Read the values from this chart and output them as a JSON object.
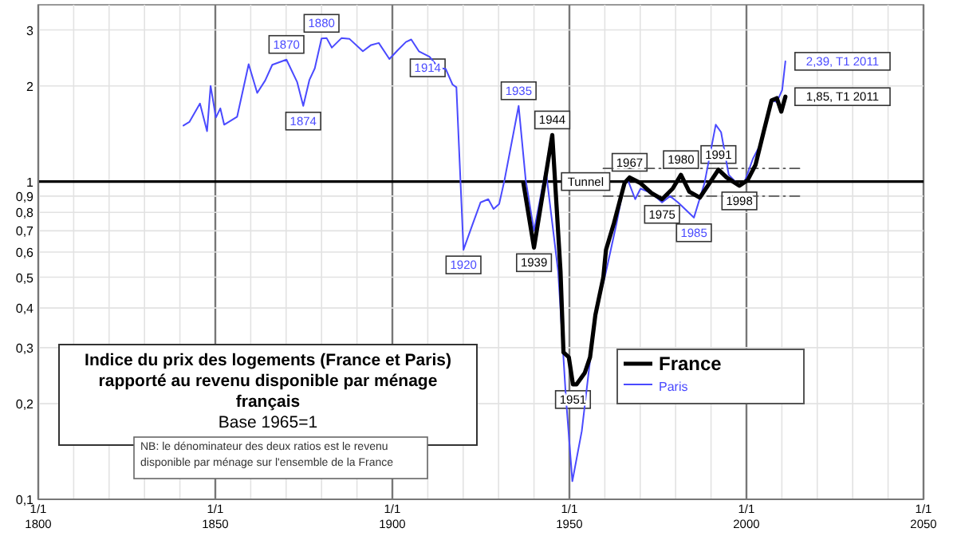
{
  "chart_data": {
    "type": "line",
    "title": "Indice du prix des logements (France et Paris) rapporté au revenu disponible par ménage français",
    "subtitle": "Base 1965=1",
    "log": "y",
    "grid": true,
    "legend": "bottom",
    "xlim": [
      "1800-01-01",
      "2050-01-01"
    ],
    "ylim": [
      0.1,
      3.6
    ],
    "xticks": [
      {
        "value": "1800-01-01",
        "label": "1/1\n1800"
      },
      {
        "value": "1810-01-01",
        "label": null
      },
      {
        "value": "1820-01-01",
        "label": null
      },
      {
        "value": "1830-01-01",
        "label": null
      },
      {
        "value": "1840-01-01",
        "label": null
      },
      {
        "value": "1850-01-01",
        "label": "1/1\n1850"
      },
      {
        "value": "1860-01-01",
        "label": null
      },
      {
        "value": "1870-01-01",
        "label": null
      },
      {
        "value": "1880-01-01",
        "label": null
      },
      {
        "value": "1890-01-01",
        "label": null
      },
      {
        "value": "1900-01-01",
        "label": "1/1\n1900"
      },
      {
        "value": "1910-01-01",
        "label": null
      },
      {
        "value": "1920-01-01",
        "label": null
      },
      {
        "value": "1930-01-01",
        "label": null
      },
      {
        "value": "1940-01-01",
        "label": null
      },
      {
        "value": "1950-01-01",
        "label": "1/1\n1950"
      },
      {
        "value": "1960-01-01",
        "label": null
      },
      {
        "value": "1970-01-01",
        "label": null
      },
      {
        "value": "1980-01-01",
        "label": null
      },
      {
        "value": "1990-01-01",
        "label": null
      },
      {
        "value": "2000-01-01",
        "label": "1/1\n2000"
      },
      {
        "value": "2010-01-01",
        "label": null
      },
      {
        "value": "2020-01-01",
        "label": null
      },
      {
        "value": "2030-01-01",
        "label": null
      },
      {
        "value": "2040-01-01",
        "label": null
      },
      {
        "value": "2050-01-01",
        "label": "1/1\n2050"
      }
    ],
    "yticks": [
      {
        "value": 0.1,
        "label": "0,1"
      },
      {
        "value": 0.2,
        "label": "0,2"
      },
      {
        "value": 0.3,
        "label": "0,3"
      },
      {
        "value": 0.4,
        "label": "0,4"
      },
      {
        "value": 0.5,
        "label": "0,5"
      },
      {
        "value": 0.6,
        "label": "0,6"
      },
      {
        "value": 0.7,
        "label": "0,7"
      },
      {
        "value": 0.8,
        "label": "0,8"
      },
      {
        "value": 0.9,
        "label": "0,9"
      },
      1,
      2,
      3
    ],
    "ref_lines": [
      {
        "axis": "y",
        "value": 1,
        "color": "#000000"
      }
    ],
    "series": [
      {
        "name": "France",
        "color": "#000000",
        "x": [
          "1937-01",
          "1940-01",
          "1945-03",
          "1947-07",
          "1948-05",
          "1949-11",
          "1951-01",
          "1952-01",
          "1954-05",
          "1955-11",
          "1957-05",
          "1959-08",
          "1960-05",
          "1962-08",
          "1965-08",
          "1967-01",
          "1970-01",
          "1973-03",
          "1976-03",
          "1979-03",
          "1981-07",
          "1983-11",
          "1986-11",
          "1989-02",
          "1992-02",
          "1994-06",
          "1998-01",
          "2000-05",
          "2002-08",
          "2004-11",
          "2007-02",
          "2008-08",
          "2009-11",
          "2011-01"
        ],
        "values": [
          0.99,
          0.62,
          1.4,
          0.52,
          0.29,
          0.28,
          0.23,
          0.23,
          0.25,
          0.28,
          0.38,
          0.5,
          0.61,
          0.74,
          0.99,
          1.03,
          0.99,
          0.92,
          0.88,
          0.95,
          1.05,
          0.93,
          0.89,
          0.97,
          1.09,
          1.03,
          0.97,
          1.01,
          1.13,
          1.43,
          1.8,
          1.83,
          1.66,
          1.85
        ]
      },
      {
        "name": "Paris",
        "color": "#4a4aff",
        "x": [
          "1841-01",
          "1842-09",
          "1845-09",
          "1847-09",
          "1848-09",
          "1850-03",
          "1851-06",
          "1852-07",
          "1856-03",
          "1859-06",
          "1861-11",
          "1864-02",
          "1866-02",
          "1870-02",
          "1873-02",
          "1874-11",
          "1876-08",
          "1878-02",
          "1880-01",
          "1881-06",
          "1882-12",
          "1885-09",
          "1887-12",
          "1891-09",
          "1894-01",
          "1896-03",
          "1899-03",
          "1901-07",
          "1903-11",
          "1905-05",
          "1907-07",
          "1910-07",
          "1913-02",
          "1915-02",
          "1917-01",
          "1918-02",
          "1920-02",
          "1922-08",
          "1924-12",
          "1927-02",
          "1928-08",
          "1930-03",
          "1931-09",
          "1935-09",
          "1937-09",
          "1940-01",
          "1943-05",
          "1946-11",
          "1949-01",
          "1950-11",
          "1953-07",
          "1957-05",
          "1960-05",
          "1963-05",
          "1965-08",
          "1966-09",
          "1968-08",
          "1970-02",
          "1973-03",
          "1976-03",
          "1978-06",
          "1980-09",
          "1985-03",
          "1988-03",
          "1991-05",
          "1992-11",
          "1995-01",
          "1998-01",
          "1999-07",
          "2001-11",
          "2004-02",
          "2007-02",
          "2008-08",
          "2010-02",
          "2011-01"
        ],
        "values": [
          1.5,
          1.54,
          1.76,
          1.44,
          2.0,
          1.59,
          1.7,
          1.51,
          1.6,
          2.34,
          1.9,
          2.08,
          2.33,
          2.42,
          2.06,
          1.73,
          2.09,
          2.27,
          2.82,
          2.83,
          2.64,
          2.83,
          2.81,
          2.57,
          2.69,
          2.73,
          2.43,
          2.59,
          2.75,
          2.8,
          2.57,
          2.47,
          2.28,
          2.26,
          2.02,
          1.98,
          0.61,
          0.73,
          0.86,
          0.88,
          0.82,
          0.85,
          1.01,
          1.73,
          1.01,
          0.7,
          1.09,
          0.52,
          0.21,
          0.114,
          0.164,
          0.38,
          0.52,
          0.74,
          1.0,
          1.0,
          0.88,
          0.95,
          0.92,
          0.86,
          0.9,
          0.86,
          0.77,
          0.99,
          1.51,
          1.43,
          1.05,
          0.97,
          1.0,
          1.18,
          1.32,
          1.8,
          1.78,
          1.94,
          2.39
        ]
      },
      {
        "color": "#555555",
        "line_style": "dashed",
        "x": [
          "1959-08",
          "2016-01"
        ],
        "values": [
          1.1,
          1.1
        ]
      },
      {
        "color": "#555555",
        "line_style": "dashed",
        "x": [
          "1959-08",
          "2016-01"
        ],
        "values": [
          0.9,
          0.9
        ]
      }
    ],
    "annotations": [
      {
        "text": "1870",
        "x": "1870-02",
        "y": 2.42
      },
      {
        "text": "1874",
        "x": "1874-11",
        "y": 1.73
      },
      {
        "text": "1880",
        "x": "1880-01",
        "y": 2.82
      },
      {
        "text": "1914",
        "x": "1913-02",
        "y": 2.28
      },
      {
        "text": "1920",
        "x": "1920-02",
        "y": 0.61
      },
      {
        "text": "1935",
        "x": "1935-09",
        "y": 1.73
      },
      {
        "text": "1939",
        "x": "1940-01",
        "y": 0.62
      },
      {
        "text": "1944",
        "x": "1945-03",
        "y": 1.4
      },
      {
        "text": "1951",
        "x": "1951-01",
        "y": 0.23
      },
      {
        "text": "1967",
        "x": "1967-01",
        "y": 1.03
      },
      {
        "text": "1975",
        "x": "1976-03",
        "y": 0.88
      },
      {
        "text": "1980",
        "x": "1981-07",
        "y": 1.05
      },
      {
        "text": "1985",
        "x": "1985-03",
        "y": 0.77
      },
      {
        "text": "1991",
        "x": "1992-02",
        "y": 1.09
      },
      {
        "text": "1998",
        "x": "1998-01",
        "y": 0.97
      },
      {
        "text": "2,39, T1 2011",
        "x": "2011-01",
        "y": 2.39
      },
      {
        "text": "1,85, T1 2011",
        "x": "2011-01",
        "y": 1.85
      },
      {
        "text": "Tunnel",
        "x": "1959-08",
        "y": 1.0
      },
      "NB: le dénominateur des deux ratios est le revenu disponible par ménage sur l'ensemble de la France"
    ]
  }
}
